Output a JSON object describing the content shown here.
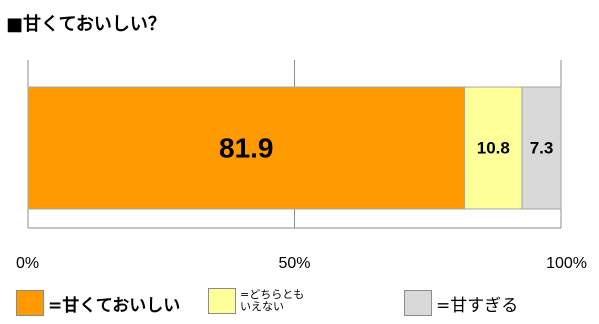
{
  "chart_data": {
    "type": "bar",
    "orientation": "horizontal-stacked",
    "title": "■甘くておいしい？",
    "categories": [
      ""
    ],
    "series": [
      {
        "name": "=甘くておいしい",
        "values": [
          81.9
        ],
        "color": "#ff9900",
        "label": "81.9"
      },
      {
        "name": "=どちらとも\nいえない",
        "values": [
          10.8
        ],
        "color": "#ffff99",
        "label": "10.8"
      },
      {
        "name": "=甘すぎる",
        "values": [
          7.3
        ],
        "color": "#d9d9d9",
        "label": "7.3"
      }
    ],
    "xlim": [
      0,
      100
    ],
    "xticks": [
      0,
      50,
      100
    ],
    "xtick_labels": [
      "0%",
      "50%",
      "100%"
    ],
    "grid": true,
    "legend_position": "bottom"
  }
}
